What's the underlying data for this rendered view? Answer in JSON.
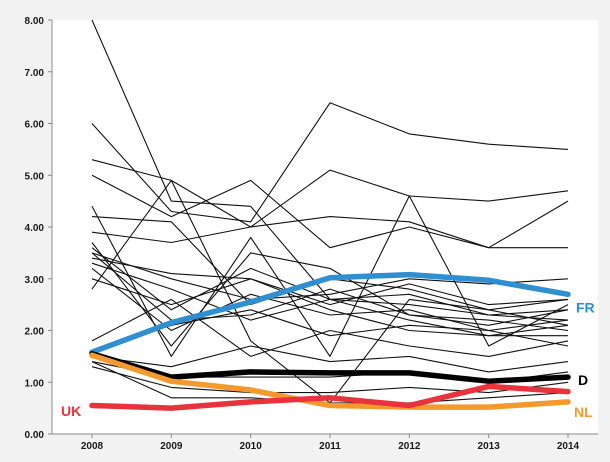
{
  "chart_data": {
    "type": "line",
    "title": "",
    "xlabel": "",
    "ylabel": "",
    "x": [
      "2008",
      "2009",
      "2010",
      "2011",
      "2012",
      "2013",
      "2014"
    ],
    "ylim": [
      0,
      8
    ],
    "yticks": [
      "0.00",
      "1.00",
      "2.00",
      "3.00",
      "4.00",
      "5.00",
      "6.00",
      "7.00",
      "8.00"
    ],
    "grid": false,
    "background_lines": [
      [
        8.0,
        4.5,
        4.4,
        2.6,
        2.7,
        2.3,
        2.4
      ],
      [
        6.0,
        4.3,
        4.1,
        6.4,
        5.8,
        5.6,
        5.5
      ],
      [
        5.3,
        4.9,
        4.0,
        5.1,
        4.6,
        4.5,
        4.7
      ],
      [
        5.0,
        4.2,
        4.9,
        3.6,
        4.0,
        3.6,
        4.5
      ],
      [
        4.4,
        1.5,
        3.8,
        1.5,
        4.6,
        1.7,
        2.5
      ],
      [
        4.2,
        4.1,
        2.5,
        3.0,
        2.8,
        2.4,
        2.1
      ],
      [
        3.9,
        3.7,
        4.0,
        4.2,
        4.1,
        3.6,
        3.6
      ],
      [
        3.7,
        1.7,
        3.5,
        3.2,
        2.3,
        2.2,
        2.0
      ],
      [
        3.6,
        2.4,
        3.2,
        2.6,
        2.5,
        2.3,
        2.2
      ],
      [
        3.5,
        3.0,
        2.6,
        2.7,
        3.0,
        2.9,
        3.0
      ],
      [
        3.5,
        2.2,
        2.3,
        2.8,
        2.3,
        2.1,
        2.4
      ],
      [
        3.4,
        3.1,
        3.0,
        2.5,
        2.9,
        2.5,
        2.6
      ],
      [
        3.3,
        2.8,
        2.2,
        2.6,
        2.2,
        1.9,
        1.9
      ],
      [
        3.2,
        2.0,
        2.7,
        2.3,
        2.4,
        2.0,
        1.7
      ],
      [
        3.0,
        2.5,
        3.0,
        2.4,
        2.0,
        1.9,
        2.1
      ],
      [
        2.8,
        4.9,
        1.8,
        0.6,
        2.6,
        2.4,
        2.6
      ],
      [
        1.8,
        2.6,
        1.5,
        2.0,
        1.7,
        1.5,
        1.8
      ],
      [
        1.6,
        2.1,
        2.4,
        1.9,
        2.1,
        2.0,
        2.2
      ],
      [
        1.5,
        1.3,
        1.7,
        1.4,
        1.5,
        1.2,
        1.4
      ],
      [
        1.4,
        1.1,
        1.1,
        1.1,
        1.2,
        1.0,
        1.2
      ],
      [
        1.3,
        0.9,
        0.8,
        0.8,
        0.9,
        0.8,
        1.0
      ],
      [
        1.4,
        0.7,
        0.7,
        0.6,
        0.6,
        0.7,
        0.8
      ]
    ],
    "series": [
      {
        "name": "FR",
        "color": "#2f8fd0",
        "values": [
          1.58,
          2.15,
          2.55,
          3.02,
          3.08,
          2.97,
          2.7
        ]
      },
      {
        "name": "D",
        "color": "#000000",
        "values": [
          1.55,
          1.1,
          1.2,
          1.18,
          1.18,
          1.02,
          1.1
        ]
      },
      {
        "name": "NL",
        "color": "#f39a2e",
        "values": [
          1.52,
          1.02,
          0.85,
          0.55,
          0.52,
          0.52,
          0.62
        ]
      },
      {
        "name": "UK",
        "color": "#e8323c",
        "values": [
          0.55,
          0.5,
          0.62,
          0.7,
          0.55,
          0.92,
          0.82
        ]
      }
    ]
  }
}
